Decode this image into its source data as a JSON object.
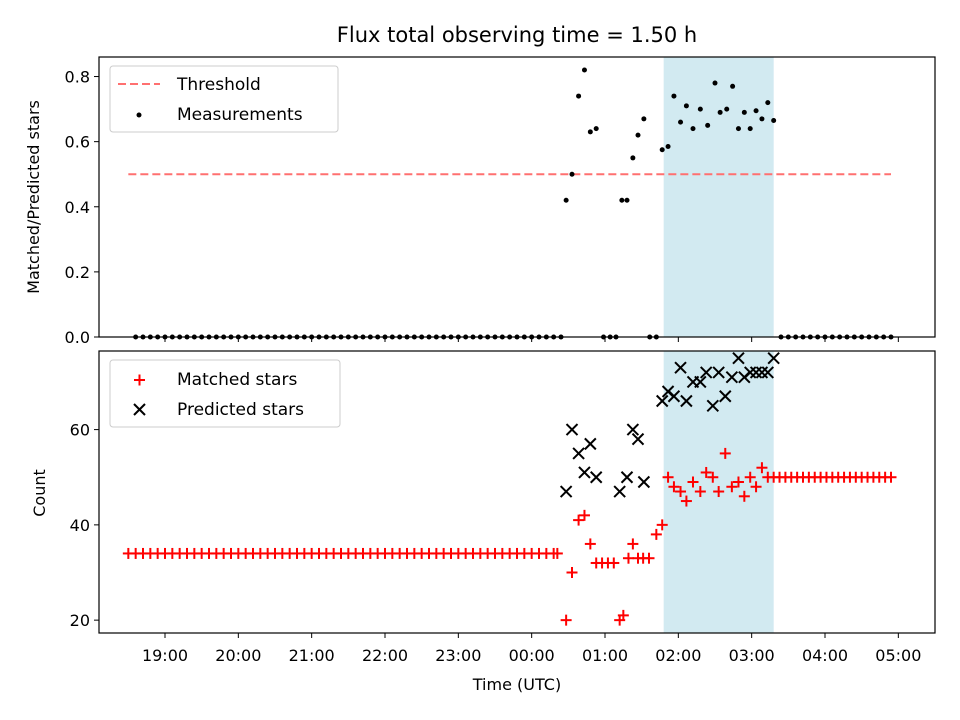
{
  "chart_data": [
    {
      "type": "scatter",
      "title": "Flux total observing time = 1.50 h",
      "xlabel": "",
      "ylabel": "Matched/Predicted stars",
      "ylim": [
        0,
        0.86
      ],
      "yticks": [
        "0.0",
        "0.2",
        "0.4",
        "0.6",
        "0.8"
      ],
      "ytick_values": [
        0,
        0.2,
        0.4,
        0.6,
        0.8
      ],
      "xlim_hours": [
        18.1,
        29.5
      ],
      "highlight_span_hours": [
        25.8,
        27.3
      ],
      "highlight_color": "#add8e6",
      "legend_position": "upper-left",
      "series": [
        {
          "name": "Threshold",
          "kind": "dashed-line",
          "color": "#ff7070",
          "x_hours": [
            18.5,
            28.9
          ],
          "values": [
            0.5,
            0.5
          ]
        },
        {
          "name": "Measurements",
          "kind": "dot",
          "color": "#000000",
          "x_hours": [
            18.6,
            18.7,
            18.8,
            18.9,
            19.0,
            19.1,
            19.2,
            19.3,
            19.4,
            19.5,
            19.6,
            19.7,
            19.8,
            19.9,
            20.0,
            20.1,
            20.2,
            20.3,
            20.4,
            20.5,
            20.6,
            20.7,
            20.8,
            20.9,
            21.0,
            21.1,
            21.2,
            21.3,
            21.4,
            21.5,
            21.6,
            21.7,
            21.8,
            21.9,
            22.0,
            22.1,
            22.2,
            22.3,
            22.4,
            22.5,
            22.6,
            22.7,
            22.8,
            22.9,
            23.0,
            23.1,
            23.2,
            23.3,
            23.4,
            23.5,
            23.6,
            23.7,
            23.8,
            23.9,
            24.0,
            24.1,
            24.2,
            24.3,
            24.4,
            24.47,
            24.55,
            24.64,
            24.72,
            24.8,
            24.88,
            24.98,
            25.07,
            25.15,
            25.23,
            25.3,
            25.38,
            25.45,
            25.53,
            25.61,
            25.7,
            25.78,
            25.86,
            25.94,
            26.03,
            26.11,
            26.2,
            26.3,
            26.4,
            26.5,
            26.57,
            26.66,
            26.74,
            26.82,
            26.9,
            26.98,
            27.06,
            27.14,
            27.22,
            27.3,
            27.4,
            27.5,
            27.6,
            27.7,
            27.8,
            27.9,
            28.0,
            28.1,
            28.2,
            28.3,
            28.4,
            28.5,
            28.6,
            28.7,
            28.8,
            28.9
          ],
          "values": [
            0,
            0,
            0,
            0,
            0,
            0,
            0,
            0,
            0,
            0,
            0,
            0,
            0,
            0,
            0,
            0,
            0,
            0,
            0,
            0,
            0,
            0,
            0,
            0,
            0,
            0,
            0,
            0,
            0,
            0,
            0,
            0,
            0,
            0,
            0,
            0,
            0,
            0,
            0,
            0,
            0,
            0,
            0,
            0,
            0,
            0,
            0,
            0,
            0,
            0,
            0,
            0,
            0,
            0,
            0,
            0,
            0,
            0,
            0,
            0.42,
            0.5,
            0.74,
            0.82,
            0.63,
            0.64,
            0,
            0,
            0,
            0.42,
            0.42,
            0.55,
            0.62,
            0.67,
            0,
            0,
            0.575,
            0.585,
            0.74,
            0.66,
            0.71,
            0.64,
            0.7,
            0.65,
            0.78,
            0.69,
            0.7,
            0.77,
            0.64,
            0.69,
            0.64,
            0.695,
            0.67,
            0.72,
            0.665,
            0,
            0,
            0,
            0,
            0,
            0,
            0,
            0,
            0,
            0,
            0,
            0,
            0,
            0,
            0,
            0
          ]
        }
      ]
    },
    {
      "type": "scatter",
      "title": "",
      "xlabel": "Time (UTC)",
      "ylabel": "Count",
      "ylim": [
        17.3,
        76.5
      ],
      "yticks": [
        "20",
        "40",
        "60"
      ],
      "ytick_values": [
        20,
        40,
        60
      ],
      "xlim_hours": [
        18.1,
        29.5
      ],
      "xtick_hours": [
        19,
        20,
        21,
        22,
        23,
        24,
        25,
        26,
        27,
        28,
        29
      ],
      "xticks": [
        "19:00",
        "20:00",
        "21:00",
        "22:00",
        "23:00",
        "00:00",
        "01:00",
        "02:00",
        "03:00",
        "04:00",
        "05:00"
      ],
      "highlight_span_hours": [
        25.8,
        27.3
      ],
      "highlight_color": "#add8e6",
      "legend_position": "upper-left",
      "series": [
        {
          "name": "Matched stars",
          "kind": "plus",
          "color": "#ff0000",
          "x_hours": [
            18.5,
            18.6,
            18.7,
            18.8,
            18.9,
            19.0,
            19.1,
            19.2,
            19.3,
            19.4,
            19.5,
            19.6,
            19.7,
            19.8,
            19.9,
            20.0,
            20.1,
            20.2,
            20.3,
            20.4,
            20.5,
            20.6,
            20.7,
            20.8,
            20.9,
            21.0,
            21.1,
            21.2,
            21.3,
            21.4,
            21.5,
            21.6,
            21.7,
            21.8,
            21.9,
            22.0,
            22.1,
            22.2,
            22.3,
            22.4,
            22.5,
            22.6,
            22.7,
            22.8,
            22.9,
            23.0,
            23.1,
            23.2,
            23.3,
            23.4,
            23.5,
            23.6,
            23.7,
            23.8,
            23.9,
            24.0,
            24.1,
            24.2,
            24.3,
            24.35,
            24.47,
            24.55,
            24.64,
            24.72,
            24.8,
            24.88,
            24.96,
            25.04,
            25.12,
            25.2,
            25.25,
            25.32,
            25.38,
            25.45,
            25.52,
            25.6,
            25.7,
            25.78,
            25.86,
            25.94,
            26.03,
            26.11,
            26.2,
            26.3,
            26.38,
            26.47,
            26.55,
            26.64,
            26.73,
            26.82,
            26.9,
            26.98,
            27.06,
            27.14,
            27.22,
            27.3,
            27.38,
            27.46,
            27.54,
            27.62,
            27.7,
            27.78,
            27.86,
            27.94,
            28.02,
            28.1,
            28.18,
            28.26,
            28.34,
            28.42,
            28.5,
            28.58,
            28.66,
            28.74,
            28.82,
            28.9
          ],
          "values": [
            34,
            34,
            34,
            34,
            34,
            34,
            34,
            34,
            34,
            34,
            34,
            34,
            34,
            34,
            34,
            34,
            34,
            34,
            34,
            34,
            34,
            34,
            34,
            34,
            34,
            34,
            34,
            34,
            34,
            34,
            34,
            34,
            34,
            34,
            34,
            34,
            34,
            34,
            34,
            34,
            34,
            34,
            34,
            34,
            34,
            34,
            34,
            34,
            34,
            34,
            34,
            34,
            34,
            34,
            34,
            34,
            34,
            34,
            34,
            34,
            20,
            30,
            41,
            42,
            36,
            32,
            32,
            32,
            32,
            20,
            21,
            33,
            36,
            33,
            33,
            33,
            38,
            40,
            50,
            48,
            47,
            45,
            49,
            47,
            51,
            50,
            47,
            55,
            48,
            49,
            46,
            50,
            48,
            52,
            50,
            50,
            50,
            50,
            50,
            50,
            50,
            50,
            50,
            50,
            50,
            50,
            50,
            50,
            50,
            50,
            50,
            50,
            50,
            50,
            50,
            50
          ]
        },
        {
          "name": "Predicted stars",
          "kind": "x",
          "color": "#000000",
          "x_hours": [
            24.47,
            24.55,
            24.64,
            24.72,
            24.8,
            24.88,
            25.2,
            25.3,
            25.38,
            25.45,
            25.53,
            25.78,
            25.86,
            25.94,
            26.03,
            26.11,
            26.2,
            26.3,
            26.38,
            26.47,
            26.55,
            26.64,
            26.73,
            26.82,
            26.9,
            26.98,
            27.06,
            27.14,
            27.22,
            27.3
          ],
          "values": [
            47,
            60,
            55,
            51,
            57,
            50,
            47,
            50,
            60,
            58,
            49,
            66,
            68,
            67,
            73,
            66,
            70,
            70,
            72,
            65,
            72,
            67,
            71,
            75,
            71,
            72,
            72,
            72,
            72,
            75
          ]
        }
      ]
    }
  ]
}
